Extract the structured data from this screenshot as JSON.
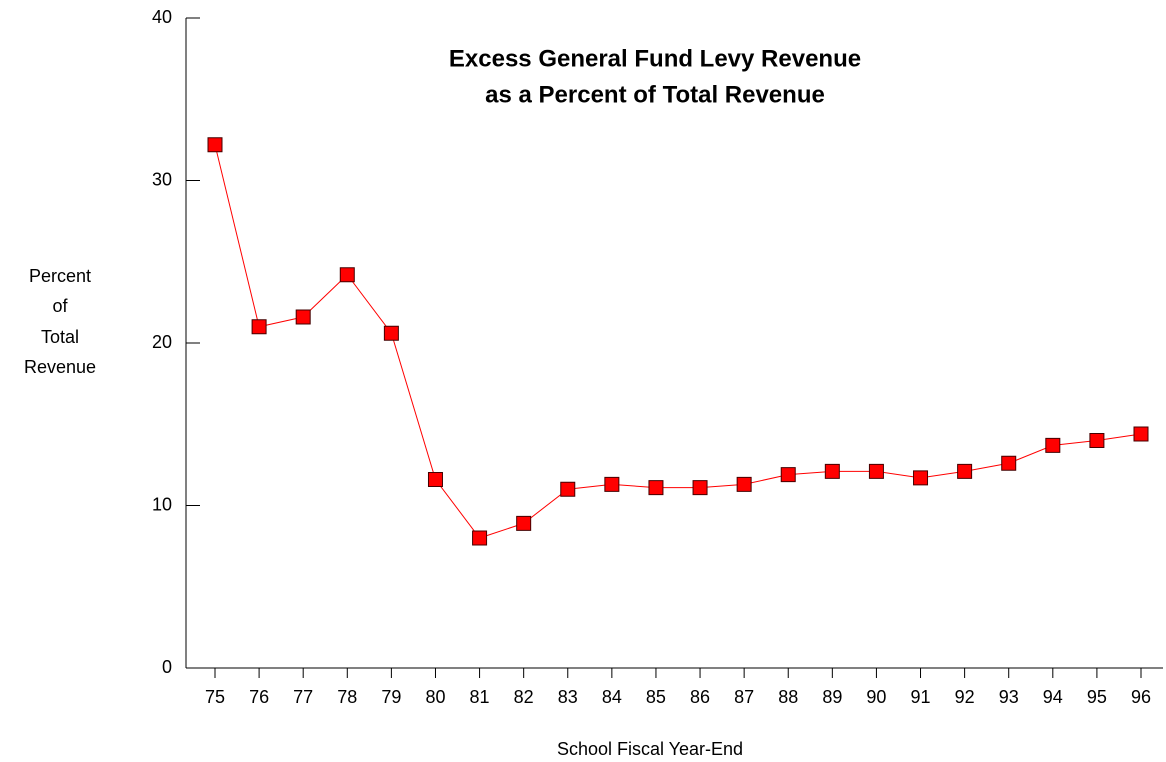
{
  "chart_data": {
    "type": "line",
    "title": [
      "Excess General Fund Levy Revenue",
      "as a Percent of Total Revenue"
    ],
    "x_label": "School Fiscal Year-End",
    "y_label": [
      "Percent",
      "of",
      "Total",
      "Revenue"
    ],
    "categories": [
      "75",
      "76",
      "77",
      "78",
      "79",
      "80",
      "81",
      "82",
      "83",
      "84",
      "85",
      "86",
      "87",
      "88",
      "89",
      "90",
      "91",
      "92",
      "93",
      "94",
      "95",
      "96"
    ],
    "series": [
      {
        "name": "Excess General Fund Levy Revenue",
        "color": "#ff0000",
        "values": [
          32.2,
          21.0,
          21.6,
          24.2,
          20.6,
          11.6,
          8.0,
          8.9,
          11.0,
          11.3,
          11.1,
          11.1,
          11.3,
          11.9,
          12.1,
          12.1,
          11.7,
          12.1,
          12.6,
          13.7,
          14.0,
          14.4
        ]
      }
    ],
    "ylim": [
      0,
      40
    ],
    "yticks": [
      0,
      10,
      20,
      30,
      40
    ],
    "grid": false
  }
}
